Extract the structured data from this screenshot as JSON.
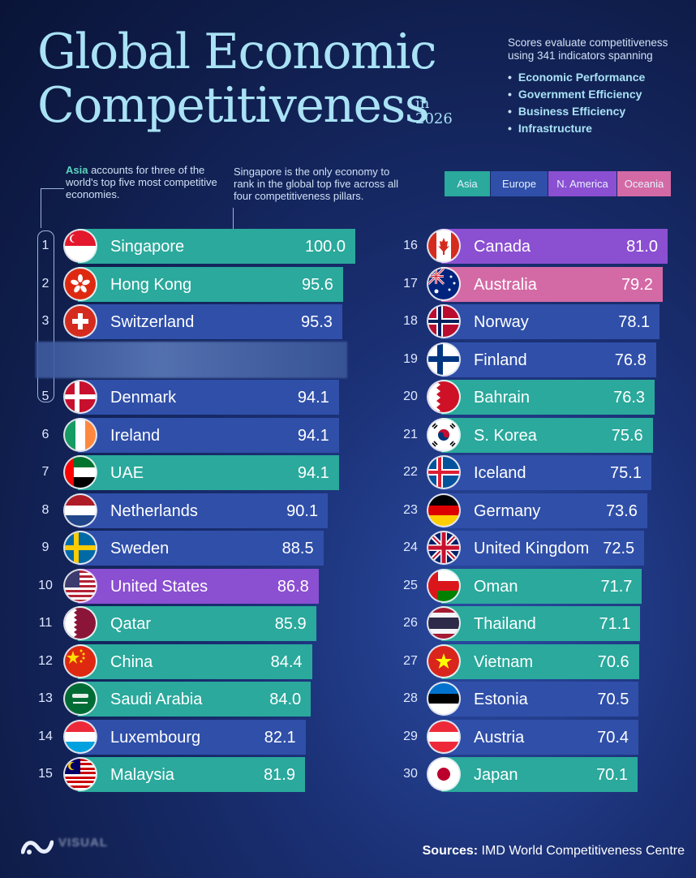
{
  "title": {
    "line1": "Global Economic",
    "line2": "Competitiveness",
    "year_in": "in",
    "year": "2026"
  },
  "intro": {
    "text": "Scores evaluate competitiveness using 341 indicators spanning",
    "pillars": [
      "Economic Performance",
      "Government Efficiency",
      "Business Efficiency",
      "Infrastructure"
    ]
  },
  "notes": {
    "asia_highlight": "Asia",
    "asia_rest": " accounts for three of the world's top five most competitive economies.",
    "singapore": "Singapore is the only economy to rank in the global top five across all four competitiveness pillars."
  },
  "legend": [
    {
      "label": "Asia",
      "color": "#2aa99c"
    },
    {
      "label": "Europe",
      "color": "#2f4fa9"
    },
    {
      "label": "N. America",
      "color": "#8b4fd1"
    },
    {
      "label": "Oceania",
      "color": "#d46aa5"
    }
  ],
  "source": {
    "label": "Sources:",
    "text": " IMD World Competitiveness Centre"
  },
  "logo_text": "VISUAL",
  "chart_data": {
    "type": "bar",
    "title": "Global Economic Competitiveness in 2026",
    "xlabel": "",
    "ylabel": "",
    "rows": [
      {
        "rank": "1",
        "country": "Singapore",
        "value": 100.0,
        "value_label": "100.0",
        "region": "Asia",
        "flag": "singapore-flag-icon"
      },
      {
        "rank": "2",
        "country": "Hong Kong",
        "value": 95.6,
        "value_label": "95.6",
        "region": "Asia",
        "flag": "hong-kong-flag-icon"
      },
      {
        "rank": "3",
        "country": "Switzerland",
        "value": 95.3,
        "value_label": "95.3",
        "region": "Europe",
        "flag": "switzerland-flag-icon"
      },
      {
        "rank": "5",
        "country": "Denmark",
        "value": 94.1,
        "value_label": "94.1",
        "region": "Europe",
        "flag": "denmark-flag-icon"
      },
      {
        "rank": "6",
        "country": "Ireland",
        "value": 94.1,
        "value_label": "94.1",
        "region": "Europe",
        "flag": "ireland-flag-icon"
      },
      {
        "rank": "7",
        "country": "UAE",
        "value": 94.1,
        "value_label": "94.1",
        "region": "Asia",
        "flag": "uae-flag-icon"
      },
      {
        "rank": "8",
        "country": "Netherlands",
        "value": 90.1,
        "value_label": "90.1",
        "region": "Europe",
        "flag": "netherlands-flag-icon"
      },
      {
        "rank": "9",
        "country": "Sweden",
        "value": 88.5,
        "value_label": "88.5",
        "region": "Europe",
        "flag": "sweden-flag-icon"
      },
      {
        "rank": "10",
        "country": "United States",
        "value": 86.8,
        "value_label": "86.8",
        "region": "N. America",
        "flag": "usa-flag-icon"
      },
      {
        "rank": "11",
        "country": "Qatar",
        "value": 85.9,
        "value_label": "85.9",
        "region": "Asia",
        "flag": "qatar-flag-icon"
      },
      {
        "rank": "12",
        "country": "China",
        "value": 84.4,
        "value_label": "84.4",
        "region": "Asia",
        "flag": "china-flag-icon"
      },
      {
        "rank": "13",
        "country": "Saudi Arabia",
        "value": 84.0,
        "value_label": "84.0",
        "region": "Asia",
        "flag": "saudi-arabia-flag-icon"
      },
      {
        "rank": "14",
        "country": "Luxembourg",
        "value": 82.1,
        "value_label": "82.1",
        "region": "Europe",
        "flag": "luxembourg-flag-icon"
      },
      {
        "rank": "15",
        "country": "Malaysia",
        "value": 81.9,
        "value_label": "81.9",
        "region": "Asia",
        "flag": "malaysia-flag-icon"
      },
      {
        "rank": "16",
        "country": "Canada",
        "value": 81.0,
        "value_label": "81.0",
        "region": "N. America",
        "flag": "canada-flag-icon"
      },
      {
        "rank": "17",
        "country": "Australia",
        "value": 79.2,
        "value_label": "79.2",
        "region": "Oceania",
        "flag": "australia-flag-icon"
      },
      {
        "rank": "18",
        "country": "Norway",
        "value": 78.1,
        "value_label": "78.1",
        "region": "Europe",
        "flag": "norway-flag-icon"
      },
      {
        "rank": "19",
        "country": "Finland",
        "value": 76.8,
        "value_label": "76.8",
        "region": "Europe",
        "flag": "finland-flag-icon"
      },
      {
        "rank": "20",
        "country": "Bahrain",
        "value": 76.3,
        "value_label": "76.3",
        "region": "Asia",
        "flag": "bahrain-flag-icon"
      },
      {
        "rank": "21",
        "country": "S. Korea",
        "value": 75.6,
        "value_label": "75.6",
        "region": "Asia",
        "flag": "south-korea-flag-icon"
      },
      {
        "rank": "22",
        "country": "Iceland",
        "value": 75.1,
        "value_label": "75.1",
        "region": "Europe",
        "flag": "iceland-flag-icon"
      },
      {
        "rank": "23",
        "country": "Germany",
        "value": 73.6,
        "value_label": "73.6",
        "region": "Europe",
        "flag": "germany-flag-icon"
      },
      {
        "rank": "24",
        "country": "United Kingdom",
        "value": 72.5,
        "value_label": "72.5",
        "region": "Europe",
        "flag": "uk-flag-icon"
      },
      {
        "rank": "25",
        "country": "Oman",
        "value": 71.7,
        "value_label": "71.7",
        "region": "Asia",
        "flag": "oman-flag-icon"
      },
      {
        "rank": "26",
        "country": "Thailand",
        "value": 71.1,
        "value_label": "71.1",
        "region": "Asia",
        "flag": "thailand-flag-icon"
      },
      {
        "rank": "27",
        "country": "Vietnam",
        "value": 70.6,
        "value_label": "70.6",
        "region": "Asia",
        "flag": "vietnam-flag-icon"
      },
      {
        "rank": "28",
        "country": "Estonia",
        "value": 70.5,
        "value_label": "70.5",
        "region": "Europe",
        "flag": "estonia-flag-icon"
      },
      {
        "rank": "29",
        "country": "Austria",
        "value": 70.4,
        "value_label": "70.4",
        "region": "Europe",
        "flag": "austria-flag-icon"
      },
      {
        "rank": "30",
        "country": "Japan",
        "value": 70.1,
        "value_label": "70.1",
        "region": "Asia",
        "flag": "japan-flag-icon"
      }
    ]
  }
}
